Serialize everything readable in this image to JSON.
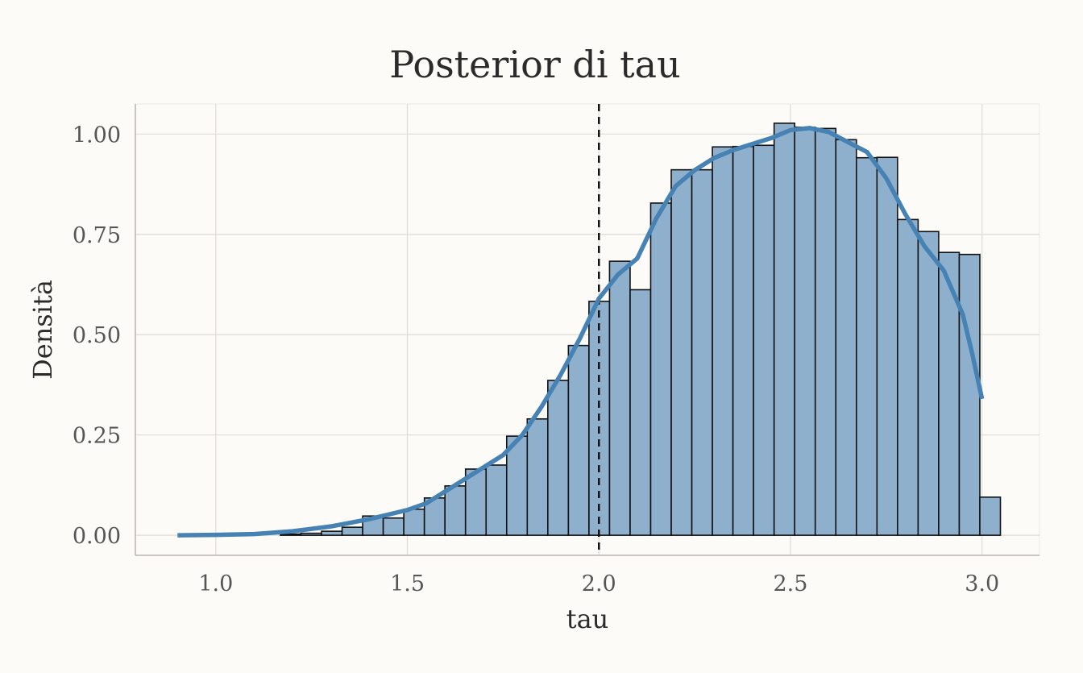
{
  "chart_data": {
    "type": "bar",
    "title": "Posterior di tau",
    "xlabel": "tau",
    "ylabel": "Densità",
    "xlim": [
      0.79,
      3.15
    ],
    "ylim": [
      -0.05,
      1.075
    ],
    "x_ticks": [
      1.0,
      1.5,
      2.0,
      2.5,
      3.0
    ],
    "x_tick_labels": [
      "1.0",
      "1.5",
      "2.0",
      "2.5",
      "3.0"
    ],
    "y_ticks": [
      0.0,
      0.25,
      0.5,
      0.75,
      1.0
    ],
    "y_tick_labels": [
      "0.00",
      "0.25",
      "0.50",
      "0.75",
      "1.00"
    ],
    "grid": true,
    "histogram": {
      "bin_width": 0.0537,
      "bin_edges": [
        0.9,
        0.9537,
        1.0074,
        1.0611,
        1.1148,
        1.1685,
        1.2222,
        1.2759,
        1.3296,
        1.3833,
        1.437,
        1.4907,
        1.5444,
        1.5981,
        1.6518,
        1.7055,
        1.7592,
        1.8129,
        1.8666,
        1.9203,
        1.974,
        2.0277,
        2.0814,
        2.1351,
        2.1888,
        2.2425,
        2.2962,
        2.3499,
        2.4036,
        2.4573,
        2.511,
        2.5647,
        2.6184,
        2.6721,
        2.7258,
        2.7795,
        2.8332,
        2.8869,
        2.9406,
        2.9943,
        3.048
      ],
      "densities": [
        0.0,
        0.0,
        0.0,
        0.0,
        0.0,
        0.003,
        0.005,
        0.01,
        0.02,
        0.048,
        0.043,
        0.065,
        0.093,
        0.123,
        0.165,
        0.175,
        0.247,
        0.29,
        0.386,
        0.473,
        0.583,
        0.683,
        0.612,
        0.828,
        0.911,
        0.911,
        0.968,
        0.969,
        0.972,
        1.027,
        1.017,
        1.014,
        0.986,
        0.941,
        0.942,
        0.787,
        0.757,
        0.705,
        0.7,
        0.095
      ]
    },
    "density_curve": {
      "x": [
        0.9,
        1.0,
        1.1,
        1.2,
        1.3,
        1.4,
        1.5,
        1.55,
        1.6,
        1.65,
        1.7,
        1.75,
        1.8,
        1.85,
        1.9,
        1.95,
        2.0,
        2.05,
        2.1,
        2.15,
        2.2,
        2.25,
        2.3,
        2.35,
        2.4,
        2.45,
        2.5,
        2.55,
        2.6,
        2.65,
        2.7,
        2.75,
        2.8,
        2.85,
        2.9,
        2.95,
        2.975,
        3.0
      ],
      "y": [
        0.0,
        0.001,
        0.003,
        0.01,
        0.022,
        0.04,
        0.063,
        0.08,
        0.11,
        0.14,
        0.17,
        0.2,
        0.25,
        0.32,
        0.4,
        0.49,
        0.59,
        0.65,
        0.69,
        0.79,
        0.87,
        0.91,
        0.94,
        0.96,
        0.975,
        0.99,
        1.01,
        1.015,
        1.005,
        0.98,
        0.955,
        0.89,
        0.8,
        0.72,
        0.66,
        0.55,
        0.45,
        0.34
      ]
    },
    "reference_line": {
      "x": 2.0
    },
    "colors": {
      "background": "#fcfbf7",
      "bar_fill": "#8fb0cd",
      "bar_outline": "#111111",
      "density_line": "#4682b4",
      "reference_line": "#111111",
      "grid": "#dedbd6"
    }
  }
}
